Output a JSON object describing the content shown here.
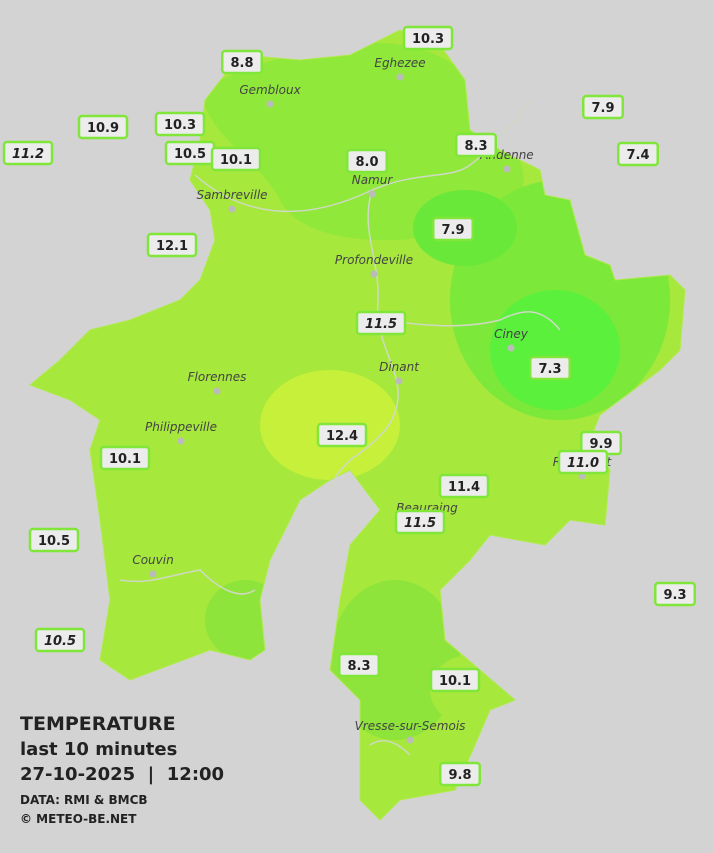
{
  "map": {
    "stations": [
      {
        "label": "10.3",
        "style": "normal"
      },
      {
        "label": "8.8",
        "style": "normal"
      },
      {
        "label": "10.9",
        "style": "normal"
      },
      {
        "label": "10.3",
        "style": "normal"
      },
      {
        "label": "11.2",
        "style": "italic"
      },
      {
        "label": "10.5",
        "style": "normal"
      },
      {
        "label": "10.1",
        "style": "normal"
      },
      {
        "label": "8.0",
        "style": "normal"
      },
      {
        "label": "8.3",
        "style": "normal"
      },
      {
        "label": "7.9",
        "style": "normal"
      },
      {
        "label": "7.4",
        "style": "normal"
      },
      {
        "label": "7.9",
        "style": "normal"
      },
      {
        "label": "12.1",
        "style": "normal"
      },
      {
        "label": "11.5",
        "style": "italic"
      },
      {
        "label": "7.3",
        "style": "normal"
      },
      {
        "label": "12.4",
        "style": "normal"
      },
      {
        "label": "9.9",
        "style": "normal"
      },
      {
        "label": "11.0",
        "style": "italic"
      },
      {
        "label": "10.1",
        "style": "normal"
      },
      {
        "label": "11.4",
        "style": "normal"
      },
      {
        "label": "11.5",
        "style": "italic"
      },
      {
        "label": "10.5",
        "style": "normal"
      },
      {
        "label": "9.3",
        "style": "normal"
      },
      {
        "label": "10.5",
        "style": "italic"
      },
      {
        "label": "8.3",
        "style": "normal"
      },
      {
        "label": "10.1",
        "style": "normal"
      },
      {
        "label": "9.8",
        "style": "normal"
      }
    ],
    "cities": [
      "Eghezee",
      "Gembloux",
      "Andenne",
      "Namur",
      "Sambreville",
      "Profondeville",
      "Ciney",
      "Dinant",
      "Florennes",
      "Philippeville",
      "Rochefort",
      "Beauraing",
      "Couvin",
      "Vresse-sur-Semois"
    ],
    "legend": {
      "title": "TEMPERATURE",
      "subtitle": "last 10 minutes",
      "datetime": "27-10-2025  |  12:00",
      "source": "DATA: RMI & BMCB",
      "credit": "© METEO-BE.NET"
    }
  }
}
